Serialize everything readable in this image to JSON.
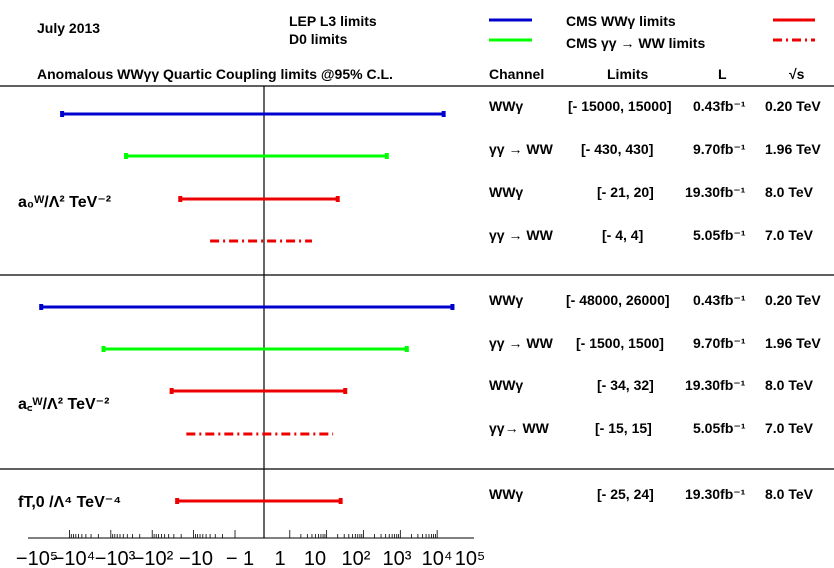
{
  "header": {
    "date": "July 2013",
    "legend": [
      {
        "label": "LEP L3 limits",
        "color": "#0000cc",
        "style": "none"
      },
      {
        "label": "D0 limits",
        "color": "#00ff00",
        "style": "none"
      },
      {
        "label": "CMS WWγ limits",
        "color": "#0000dd",
        "style": "solid"
      },
      {
        "label": "CMS γγ → WW limits",
        "color": "#00ee00",
        "style": "solid"
      },
      {
        "label": "",
        "color": "#ee0000",
        "style": "solid"
      },
      {
        "label": "",
        "color": "#ee0000",
        "style": "dashdot"
      }
    ]
  },
  "table": {
    "columns": {
      "title": "Anomalous WWγγ Quartic Coupling limits @95% C.L.",
      "channel": "Channel",
      "limits": "Limits",
      "lumi": "L",
      "sqrts": "√s"
    }
  },
  "chart_data": {
    "type": "interval",
    "title": "Anomalous WWγγ Quartic Coupling limits @95% C.L.",
    "x_scale": "symmetric-log",
    "x_ticks": [
      "−10⁵",
      "−10⁴",
      "−10³",
      "−10²",
      "−10",
      "− 1",
      "1",
      "10",
      "10²",
      "10³",
      "10⁴",
      "10⁵"
    ],
    "x_tick_values": [
      -100000,
      -10000,
      -1000,
      -100,
      -10,
      -1,
      1,
      10,
      100,
      1000,
      10000,
      100000
    ],
    "groups": [
      {
        "label": "a₀ᵂ/Λ² TeV⁻²",
        "rows": [
          {
            "channel": "WWγ",
            "limits": "[- 15000, 15000]",
            "lumi": "0.43fb⁻¹",
            "sqrts": "0.20 TeV",
            "lo": -15000,
            "hi": 15000,
            "color": "#0000cc",
            "style": "solid"
          },
          {
            "channel": "γγ → WW",
            "limits": "[- 430, 430]",
            "lumi": "9.70fb⁻¹",
            "sqrts": "1.96 TeV",
            "lo": -430,
            "hi": 430,
            "color": "#00ff00",
            "style": "solid"
          },
          {
            "channel": "WWγ",
            "limits": "[- 21, 20]",
            "lumi": "19.30fb⁻¹",
            "sqrts": "8.0  TeV",
            "lo": -21,
            "hi": 20,
            "color": "#ee0000",
            "style": "solid"
          },
          {
            "channel": "γγ → WW",
            "limits": "[- 4, 4]",
            "lumi": "5.05fb⁻¹",
            "sqrts": "7.0  TeV",
            "lo": -4,
            "hi": 4,
            "color": "#ee0000",
            "style": "dashdot"
          }
        ]
      },
      {
        "label": "a꜀ᵂ/Λ² TeV⁻²",
        "rows": [
          {
            "channel": "WWγ",
            "limits": "[- 48000, 26000]",
            "lumi": "0.43fb⁻¹",
            "sqrts": "0.20 TeV",
            "lo": -48000,
            "hi": 26000,
            "color": "#0000cc",
            "style": "solid"
          },
          {
            "channel": "γγ → WW",
            "limits": "[- 1500, 1500]",
            "lumi": "9.70fb⁻¹",
            "sqrts": "1.96 TeV",
            "lo": -1500,
            "hi": 1500,
            "color": "#00ff00",
            "style": "solid"
          },
          {
            "channel": "WWγ",
            "limits": "[- 34, 32]",
            "lumi": "19.30fb⁻¹",
            "sqrts": "8.0  TeV",
            "lo": -34,
            "hi": 32,
            "color": "#ee0000",
            "style": "solid"
          },
          {
            "channel": "γγ→ WW",
            "limits": "[- 15, 15]",
            "lumi": "5.05fb⁻¹",
            "sqrts": "7.0  TeV",
            "lo": -15,
            "hi": 15,
            "color": "#ee0000",
            "style": "dashdot"
          }
        ]
      },
      {
        "label": "fT,0 /Λ⁴ TeV⁻⁴",
        "rows": [
          {
            "channel": "WWγ",
            "limits": "[- 25, 24]",
            "lumi": "19.30fb⁻¹",
            "sqrts": "8.0  TeV",
            "lo": -25,
            "hi": 24,
            "color": "#ee0000",
            "style": "solid"
          }
        ]
      }
    ]
  }
}
